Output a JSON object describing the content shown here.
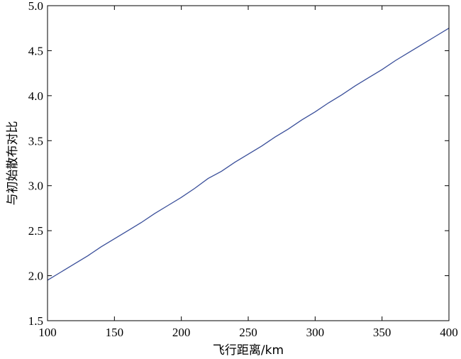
{
  "chart_data": {
    "type": "line",
    "title": "",
    "xlabel": "飞行距离/km",
    "ylabel": "与初始散布对比",
    "xlim": [
      100,
      400
    ],
    "ylim": [
      1.5,
      5.0
    ],
    "x_ticks": [
      100,
      150,
      200,
      250,
      300,
      350,
      400
    ],
    "x_tick_labels": [
      "100",
      "150",
      "200",
      "250",
      "300",
      "350",
      "400"
    ],
    "y_ticks": [
      1.5,
      2.0,
      2.5,
      3.0,
      3.5,
      4.0,
      4.5,
      5.0
    ],
    "y_tick_labels": [
      "1.5",
      "2.0",
      "2.5",
      "3.0",
      "3.5",
      "4.0",
      "4.5",
      "5.0"
    ],
    "grid": false,
    "legend": "none",
    "series": [
      {
        "color": "#3a4f9a",
        "x": [
          100,
          110,
          120,
          130,
          140,
          150,
          160,
          170,
          180,
          190,
          200,
          210,
          220,
          230,
          240,
          250,
          260,
          270,
          280,
          290,
          300,
          310,
          320,
          330,
          340,
          350,
          360,
          370,
          380,
          390,
          400
        ],
        "y": [
          1.95,
          2.04,
          2.13,
          2.22,
          2.32,
          2.41,
          2.5,
          2.59,
          2.69,
          2.78,
          2.87,
          2.97,
          3.08,
          3.16,
          3.26,
          3.35,
          3.44,
          3.54,
          3.63,
          3.73,
          3.82,
          3.92,
          4.01,
          4.11,
          4.2,
          4.29,
          4.39,
          4.48,
          4.57,
          4.66,
          4.75
        ]
      }
    ]
  }
}
